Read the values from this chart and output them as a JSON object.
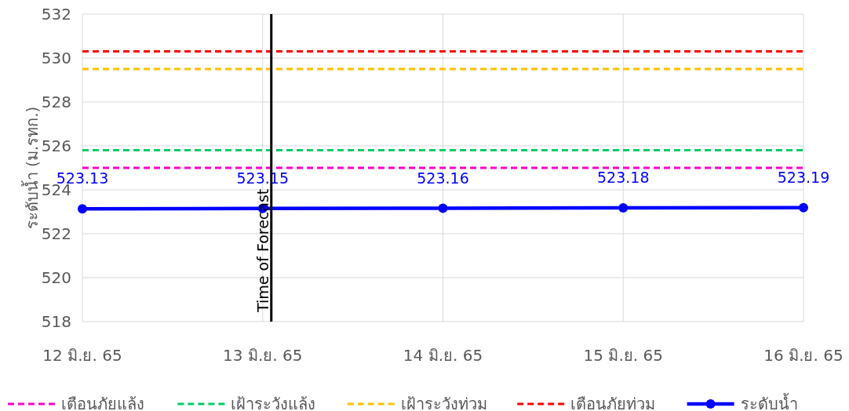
{
  "chart_data": {
    "type": "line",
    "ylabel": "ระดับน้ำ (ม.รทก.)",
    "categories": [
      "12 มิ.ย. 65",
      "13 มิ.ย. 65",
      "14 มิ.ย. 65",
      "15 มิ.ย. 65",
      "16 มิ.ย. 65"
    ],
    "series": [
      {
        "name": "เตือนภัยแล้ง",
        "color": "#ff00cc",
        "values": [
          525.0,
          525.0,
          525.0,
          525.0,
          525.0
        ],
        "line_style": "dashed",
        "marker": "none"
      },
      {
        "name": "เฝ้าระวังแล้ง",
        "color": "#00cc66",
        "values": [
          525.8,
          525.8,
          525.8,
          525.8,
          525.8
        ],
        "line_style": "dashed",
        "marker": "none"
      },
      {
        "name": "เฝ้าระวังท่วม",
        "color": "#ffc000",
        "values": [
          529.5,
          529.5,
          529.5,
          529.5,
          529.5
        ],
        "line_style": "dashed",
        "marker": "none"
      },
      {
        "name": "เตือนภัยท่วม",
        "color": "#ff0000",
        "values": [
          530.3,
          530.3,
          530.3,
          530.3,
          530.3
        ],
        "line_style": "dashed",
        "marker": "none"
      },
      {
        "name": "ระดับน้ำ",
        "color": "#0000ff",
        "values": [
          523.13,
          523.15,
          523.16,
          523.18,
          523.19
        ],
        "marker": "circle",
        "line_style": "solid",
        "data_labels": true
      }
    ],
    "ylim": [
      518,
      532
    ],
    "yticks": [
      518,
      520,
      522,
      524,
      526,
      528,
      530,
      532
    ],
    "grid": true,
    "legend": "bottom",
    "ref_lines": [
      {
        "axis": "x",
        "value": "13 มิ.ย. 65",
        "label": "Time of Forecast",
        "color": "#000000"
      }
    ]
  }
}
